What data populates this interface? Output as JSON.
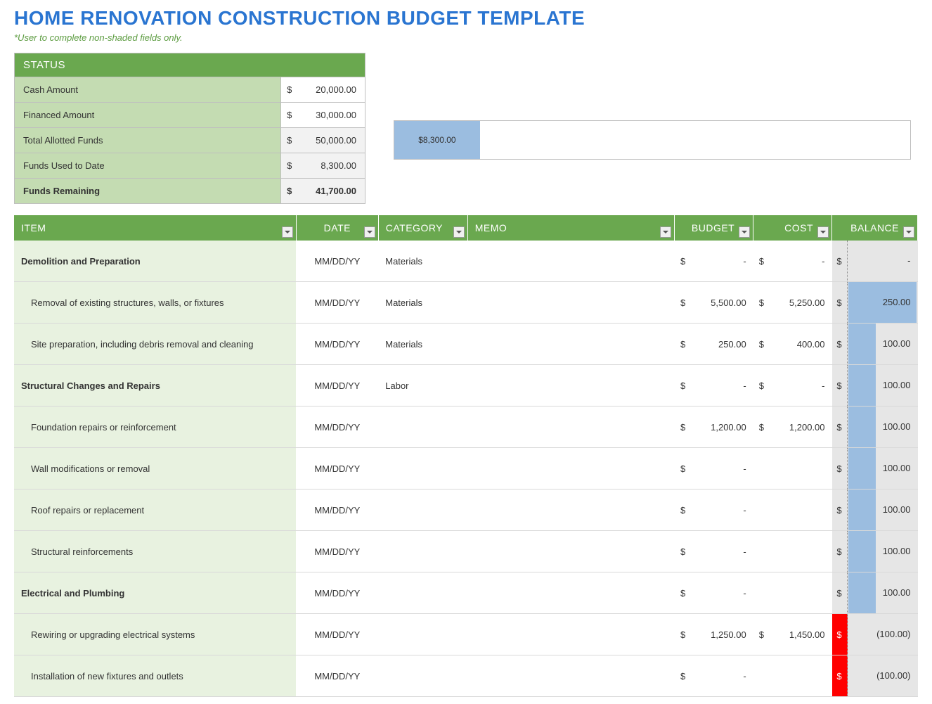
{
  "title": "HOME RENOVATION CONSTRUCTION BUDGET TEMPLATE",
  "subtitle": "*User to complete non-shaded fields only.",
  "colors": {
    "header_green": "#6aa84f",
    "row_green": "#c4dcb2",
    "row_green_light": "#e8f2e0",
    "title_blue": "#2a75d1",
    "bar_blue": "#9bbde0",
    "negative_red": "#ff0000",
    "grey_cell": "#f2f2f2",
    "balance_bg": "#e6e6e6",
    "border_grey": "#bfbfbf"
  },
  "status": {
    "header": "STATUS",
    "rows": [
      {
        "label": "Cash Amount",
        "value": "20,000.00",
        "white": true,
        "bold": false
      },
      {
        "label": "Financed Amount",
        "value": "30,000.00",
        "white": true,
        "bold": false
      },
      {
        "label": "Total Allotted Funds",
        "value": "50,000.00",
        "white": false,
        "bold": false
      },
      {
        "label": "Funds Used to Date",
        "value": "8,300.00",
        "white": false,
        "bold": false
      },
      {
        "label": "Funds Remaining",
        "value": "41,700.00",
        "white": false,
        "bold": true
      }
    ]
  },
  "progress": {
    "label": "$8,300.00",
    "fill_percent": 16.6,
    "bar_color": "#9bbde0"
  },
  "columns": {
    "item": "ITEM",
    "date": "DATE",
    "category": "CATEGORY",
    "memo": "MEMO",
    "budget": "BUDGET",
    "cost": "COST",
    "balance": "BALANCE"
  },
  "rows": [
    {
      "type": "group",
      "item": "Demolition and Preparation",
      "date": "MM/DD/YY",
      "category": "Materials",
      "budget": "-",
      "cost": "-",
      "balance": "-",
      "bar_pct": 0,
      "neg": false
    },
    {
      "type": "sub",
      "item": "Removal of existing structures, walls, or fixtures",
      "date": "MM/DD/YY",
      "category": "Materials",
      "budget": "5,500.00",
      "cost": "5,250.00",
      "balance": "250.00",
      "bar_pct": 80,
      "neg": false
    },
    {
      "type": "sub",
      "item": "Site preparation, including debris removal and cleaning",
      "date": "MM/DD/YY",
      "category": "Materials",
      "budget": "250.00",
      "cost": "400.00",
      "balance": "100.00",
      "bar_pct": 32,
      "neg": false
    },
    {
      "type": "group",
      "item": "Structural Changes and Repairs",
      "date": "MM/DD/YY",
      "category": "Labor",
      "budget": "-",
      "cost": "-",
      "balance": "100.00",
      "bar_pct": 32,
      "neg": false
    },
    {
      "type": "sub",
      "item": "Foundation repairs or reinforcement",
      "date": "MM/DD/YY",
      "category": "",
      "budget": "1,200.00",
      "cost": "1,200.00",
      "balance": "100.00",
      "bar_pct": 32,
      "neg": false
    },
    {
      "type": "sub",
      "item": "Wall modifications or removal",
      "date": "MM/DD/YY",
      "category": "",
      "budget": "-",
      "cost": "",
      "balance": "100.00",
      "bar_pct": 32,
      "neg": false
    },
    {
      "type": "sub",
      "item": "Roof repairs or replacement",
      "date": "MM/DD/YY",
      "category": "",
      "budget": "-",
      "cost": "",
      "balance": "100.00",
      "bar_pct": 32,
      "neg": false
    },
    {
      "type": "sub",
      "item": "Structural reinforcements",
      "date": "MM/DD/YY",
      "category": "",
      "budget": "-",
      "cost": "",
      "balance": "100.00",
      "bar_pct": 32,
      "neg": false
    },
    {
      "type": "group",
      "item": "Electrical and Plumbing",
      "date": "MM/DD/YY",
      "category": "",
      "budget": "-",
      "cost": "",
      "balance": "100.00",
      "bar_pct": 32,
      "neg": false
    },
    {
      "type": "sub",
      "item": "Rewiring or upgrading electrical systems",
      "date": "MM/DD/YY",
      "category": "",
      "budget": "1,250.00",
      "cost": "1,450.00",
      "balance": "(100.00)",
      "bar_pct": 0,
      "neg": true
    },
    {
      "type": "sub",
      "item": "Installation of new fixtures and outlets",
      "date": "MM/DD/YY",
      "category": "",
      "budget": "-",
      "cost": "",
      "balance": "(100.00)",
      "bar_pct": 0,
      "neg": true
    }
  ]
}
